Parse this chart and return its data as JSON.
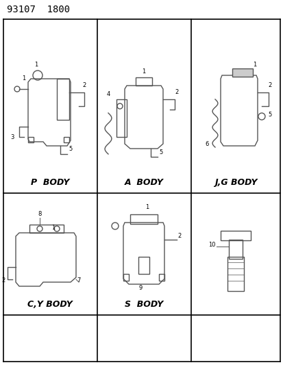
{
  "title": "93107  1800",
  "background_color": "#ffffff",
  "grid_color": "#000000",
  "text_color": "#000000",
  "diagram_color": "#555555",
  "cells": [
    {
      "label": "P  BODY",
      "col": 0,
      "row": 0
    },
    {
      "label": "A  BODY",
      "col": 1,
      "row": 0
    },
    {
      "label": "J,G BODY",
      "col": 2,
      "row": 0
    },
    {
      "label": "C,Y BODY",
      "col": 0,
      "row": 1
    },
    {
      "label": "S  BODY",
      "col": 1,
      "row": 1
    },
    {
      "label": "",
      "col": 2,
      "row": 1
    }
  ],
  "figsize": [
    4.14,
    5.33
  ],
  "dpi": 100
}
